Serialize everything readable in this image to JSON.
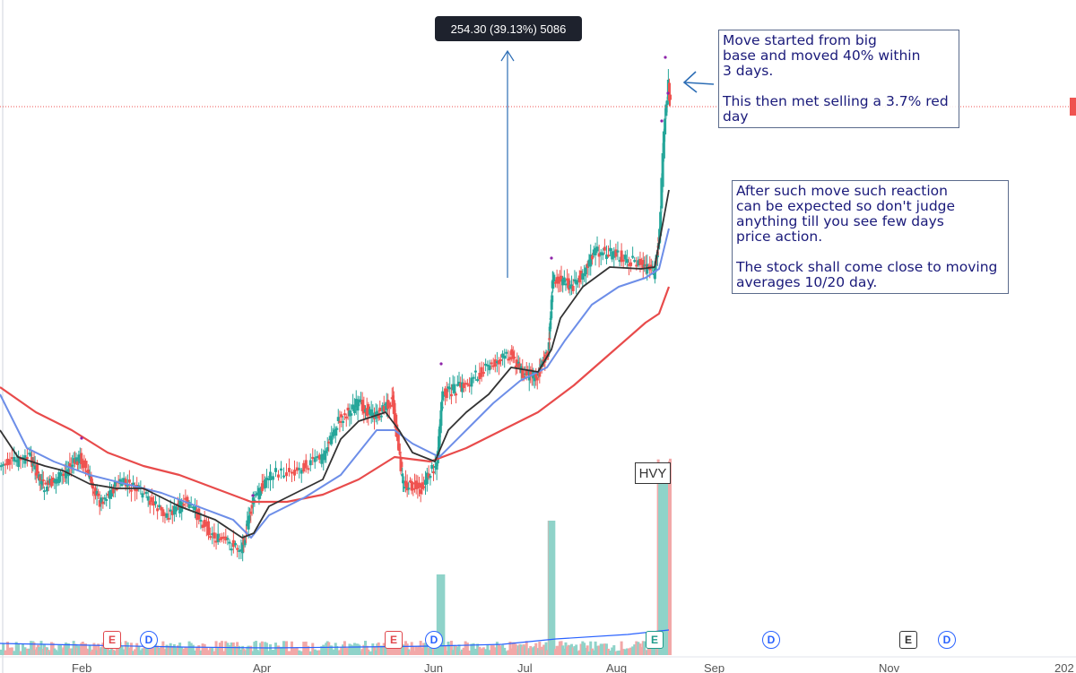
{
  "measure_label": "254.30 (39.13%) 5086",
  "annotations": {
    "note1_lines": [
      "Move started from big",
      "base and moved 40% within",
      "3 days.",
      "",
      "This then met selling a 3.7% red",
      "day"
    ],
    "note2_lines": [
      "After such move such reaction",
      "can be expected so don't judge",
      "anything till you see few days",
      "price action.",
      "",
      "The stock shall come close to moving",
      "averages 10/20 day."
    ],
    "hvy_label": "HVY"
  },
  "events": {
    "earnings_label": "E",
    "dividend_label": "D"
  },
  "colors": {
    "up": "#26a69a",
    "down": "#ef5350",
    "ma10": "#333333",
    "ma20": "#6d8ee8",
    "ma50": "#e84b4b",
    "vol_avg": "#2962ff",
    "note_text": "#1a1a7a",
    "arrow": "#2c6db5"
  },
  "chart_data": {
    "type": "candlestick",
    "x_axis_labels": [
      "Feb",
      "Apr",
      "Jun",
      "Jul",
      "Aug",
      "Sep",
      "Nov",
      "202"
    ],
    "series": [
      {
        "name": "price"
      },
      {
        "name": "ma10"
      },
      {
        "name": "ma20"
      },
      {
        "name": "ma50"
      },
      {
        "name": "volume"
      }
    ],
    "segments": [
      [
        0,
        520,
        34,
        510,
        14
      ],
      [
        34,
        510,
        50,
        545,
        14
      ],
      [
        50,
        545,
        70,
        530,
        12
      ],
      [
        70,
        530,
        90,
        510,
        14
      ],
      [
        90,
        510,
        112,
        560,
        14
      ],
      [
        112,
        560,
        135,
        538,
        12
      ],
      [
        135,
        538,
        160,
        550,
        12
      ],
      [
        160,
        550,
        185,
        575,
        12
      ],
      [
        185,
        575,
        210,
        560,
        12
      ],
      [
        210,
        560,
        240,
        600,
        14
      ],
      [
        240,
        600,
        270,
        612,
        14
      ],
      [
        270,
        612,
        283,
        560,
        10
      ],
      [
        283,
        560,
        300,
        530,
        10
      ],
      [
        300,
        530,
        330,
        525,
        10
      ],
      [
        330,
        525,
        360,
        510,
        12
      ],
      [
        360,
        510,
        378,
        470,
        12
      ],
      [
        378,
        470,
        400,
        450,
        12
      ],
      [
        400,
        450,
        420,
        465,
        12
      ],
      [
        420,
        465,
        438,
        445,
        12
      ],
      [
        438,
        445,
        450,
        540,
        14
      ],
      [
        450,
        540,
        470,
        545,
        12
      ],
      [
        470,
        545,
        488,
        515,
        10
      ],
      [
        488,
        515,
        494,
        440,
        10
      ],
      [
        494,
        440,
        518,
        430,
        14
      ],
      [
        518,
        430,
        545,
        410,
        12
      ],
      [
        545,
        410,
        570,
        395,
        12
      ],
      [
        570,
        395,
        585,
        418,
        10
      ],
      [
        585,
        418,
        600,
        420,
        10
      ],
      [
        600,
        420,
        612,
        390,
        10
      ],
      [
        612,
        390,
        617,
        310,
        10
      ],
      [
        617,
        310,
        640,
        320,
        14
      ],
      [
        640,
        320,
        665,
        280,
        14
      ],
      [
        665,
        280,
        690,
        285,
        12
      ],
      [
        690,
        285,
        715,
        295,
        12
      ],
      [
        715,
        295,
        730,
        305,
        10
      ],
      [
        730,
        305,
        736,
        260,
        8
      ],
      [
        736,
        260,
        741,
        150,
        4
      ],
      [
        741,
        150,
        746,
        95,
        4
      ],
      [
        746,
        95,
        748,
        118,
        2
      ]
    ],
    "ma10": [
      [
        0,
        480
      ],
      [
        20,
        510
      ],
      [
        50,
        520
      ],
      [
        70,
        525
      ],
      [
        100,
        540
      ],
      [
        130,
        545
      ],
      [
        160,
        545
      ],
      [
        200,
        565
      ],
      [
        240,
        580
      ],
      [
        270,
        600
      ],
      [
        283,
        595
      ],
      [
        300,
        565
      ],
      [
        330,
        550
      ],
      [
        360,
        535
      ],
      [
        380,
        490
      ],
      [
        400,
        470
      ],
      [
        430,
        460
      ],
      [
        445,
        480
      ],
      [
        460,
        505
      ],
      [
        485,
        515
      ],
      [
        500,
        480
      ],
      [
        520,
        460
      ],
      [
        545,
        440
      ],
      [
        570,
        410
      ],
      [
        600,
        415
      ],
      [
        615,
        390
      ],
      [
        625,
        355
      ],
      [
        650,
        320
      ],
      [
        680,
        298
      ],
      [
        715,
        300
      ],
      [
        730,
        298
      ],
      [
        740,
        245
      ],
      [
        746,
        212
      ]
    ],
    "ma20": [
      [
        0,
        440
      ],
      [
        30,
        500
      ],
      [
        60,
        515
      ],
      [
        100,
        530
      ],
      [
        140,
        540
      ],
      [
        180,
        550
      ],
      [
        220,
        565
      ],
      [
        260,
        580
      ],
      [
        280,
        600
      ],
      [
        300,
        575
      ],
      [
        340,
        555
      ],
      [
        380,
        530
      ],
      [
        420,
        480
      ],
      [
        440,
        480
      ],
      [
        460,
        495
      ],
      [
        490,
        510
      ],
      [
        520,
        480
      ],
      [
        550,
        450
      ],
      [
        580,
        425
      ],
      [
        610,
        410
      ],
      [
        630,
        380
      ],
      [
        660,
        340
      ],
      [
        690,
        320
      ],
      [
        720,
        310
      ],
      [
        735,
        300
      ],
      [
        746,
        255
      ]
    ],
    "ma50": [
      [
        0,
        432
      ],
      [
        40,
        460
      ],
      [
        80,
        480
      ],
      [
        120,
        505
      ],
      [
        160,
        520
      ],
      [
        200,
        530
      ],
      [
        240,
        545
      ],
      [
        280,
        560
      ],
      [
        320,
        560
      ],
      [
        360,
        552
      ],
      [
        400,
        535
      ],
      [
        440,
        510
      ],
      [
        480,
        515
      ],
      [
        520,
        500
      ],
      [
        560,
        480
      ],
      [
        600,
        460
      ],
      [
        640,
        430
      ],
      [
        680,
        395
      ],
      [
        720,
        360
      ],
      [
        735,
        350
      ],
      [
        746,
        320
      ]
    ],
    "volume": [],
    "y_range": "price scale not labeled",
    "last_price_marker": "red"
  }
}
